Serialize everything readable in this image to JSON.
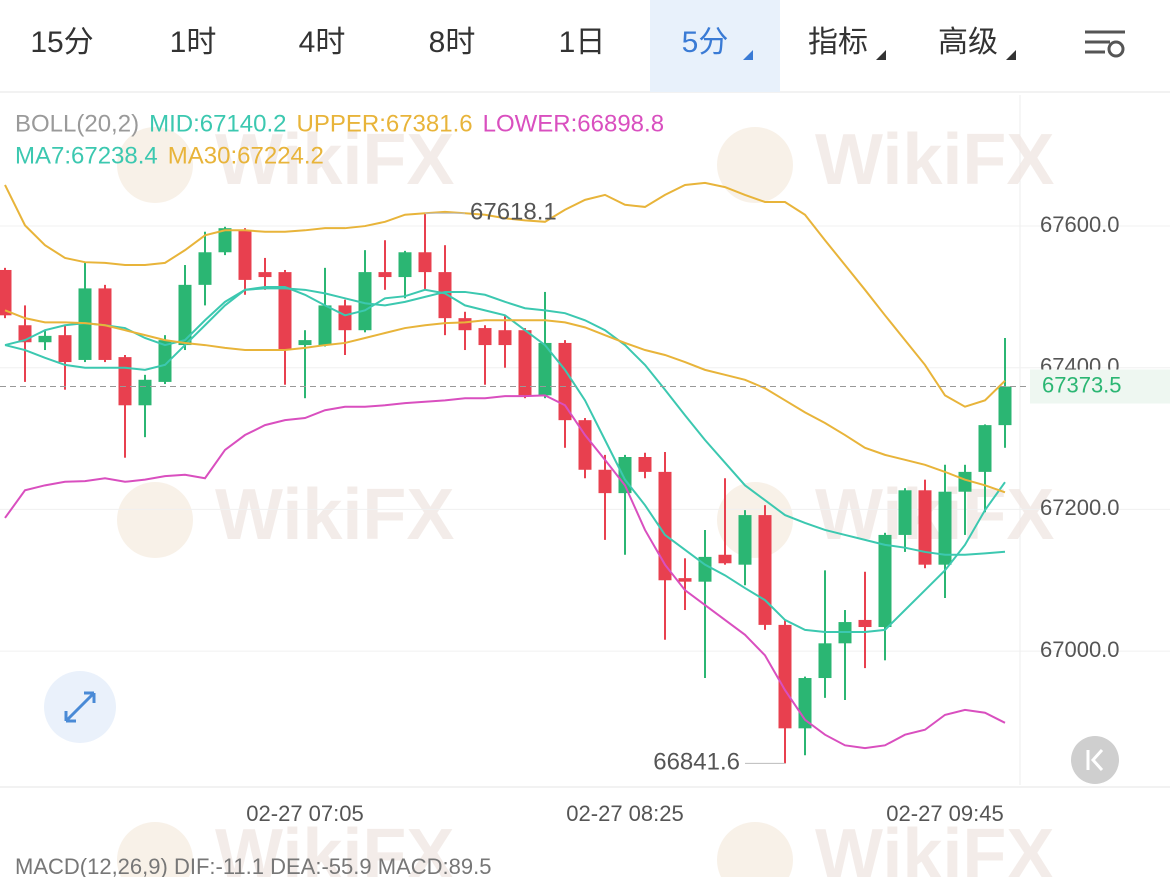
{
  "tabs": [
    "15分",
    "1时",
    "4时",
    "8时",
    "1日",
    "5分",
    "指标",
    "高级"
  ],
  "active_tab": 5,
  "watermark": "WikiFX",
  "macd_label": "MACD(12,26,9)  DIF:-11.1  DEA:-55.9  MACD:89.5",
  "chart_data": {
    "type": "candlestick",
    "legend": [
      [
        {
          "text": "BOLL(20,2)",
          "color": "#9a9a9a"
        },
        {
          "text": "MID:67140.2",
          "color": "#3cc8b0"
        },
        {
          "text": "UPPER:67381.6",
          "color": "#e8b43a"
        },
        {
          "text": "LOWER:66898.8",
          "color": "#d94fbf"
        }
      ],
      [
        {
          "text": "MA7:67238.4",
          "color": "#3cc8b0"
        },
        {
          "text": "MA30:67224.2",
          "color": "#e8b43a"
        }
      ]
    ],
    "categories": [
      null,
      null,
      null,
      null,
      null,
      null,
      null,
      null,
      null,
      null,
      null,
      null,
      null,
      null,
      null,
      "02-27 07:05",
      null,
      null,
      null,
      null,
      null,
      null,
      null,
      null,
      null,
      null,
      null,
      null,
      null,
      null,
      null,
      "02-27 08:25",
      null,
      null,
      null,
      null,
      null,
      null,
      null,
      null,
      null,
      null,
      null,
      null,
      null,
      null,
      null,
      "02-27 09:45",
      null,
      null,
      null
    ],
    "open": [
      67538,
      67460,
      67436,
      67446,
      67411,
      67512,
      67415,
      67347,
      67380,
      67432,
      67517,
      67563,
      67594,
      67535,
      67535,
      67432,
      67432,
      67488,
      67453,
      67535,
      67528,
      67563,
      67535,
      67470,
      67456,
      67453,
      67453,
      67361,
      67435,
      67326,
      67256,
      67223,
      67274,
      67253,
      67103,
      67098,
      67136,
      67122,
      67192,
      67037,
      66891,
      66962,
      67011,
      67044,
      67034,
      67164,
      67227,
      67122,
      67225,
      67253,
      67319
    ],
    "high": [
      67541,
      67488,
      67453,
      67460,
      67549,
      67517,
      67418,
      67390,
      67446,
      67545,
      67592,
      67599,
      67597,
      67555,
      67538,
      67453,
      67541,
      67496,
      67566,
      67580,
      67565,
      67618.1,
      67573,
      67479,
      67460,
      67474,
      67456,
      67507,
      67439,
      67329,
      67277,
      67277,
      67280,
      67281,
      67131,
      67171,
      67244,
      67199,
      67206,
      67044,
      66964,
      67114,
      67058,
      67112,
      67167,
      67230,
      67242,
      67263,
      67263,
      67320,
      67442
    ],
    "low": [
      67470,
      67380,
      67425,
      67369,
      67408,
      67408,
      67273,
      67302,
      67377,
      67425,
      67488,
      67559,
      67503,
      67510,
      67376,
      67357,
      67430,
      67418,
      67450,
      67510,
      67498,
      67510,
      67446,
      67425,
      67376,
      67400,
      67357,
      67357,
      67287,
      67244,
      67157,
      67136,
      67244,
      67016,
      67058,
      66962,
      67122,
      67093,
      67030,
      66841.6,
      66853,
      66934,
      66931,
      66976,
      66987,
      67140,
      67117,
      67075,
      67164,
      67196,
      67287
    ],
    "close": [
      67474,
      67436,
      67445,
      67408,
      67512,
      67411,
      67347,
      67383,
      67439,
      67517,
      67563,
      67597,
      67524,
      67528,
      67425,
      67439,
      67488,
      67453,
      67535,
      67528,
      67563,
      67535,
      67470,
      67453,
      67432,
      67432,
      67361,
      67435,
      67326,
      67256,
      67223,
      67274,
      67253,
      67100,
      67098,
      67133,
      67124,
      67192,
      67037,
      66891,
      66962,
      67011,
      67041,
      67034,
      67164,
      67227,
      67122,
      67225,
      67253,
      67319,
      67373.5
    ],
    "up_color": "#2bb673",
    "down_color": "#e8404f",
    "series": [
      {
        "color": "#e8b43a",
        "values": [
          67658,
          67601,
          67573,
          67555,
          67549,
          67548,
          67545,
          67545,
          67548,
          67566,
          67587,
          67594,
          67594,
          67592,
          67592,
          67594,
          67597,
          67597,
          67600,
          67606,
          67616,
          67618,
          67620,
          67618,
          67616,
          67611,
          67608,
          67606,
          67623,
          67637,
          67644,
          67630,
          67627,
          67644,
          67658,
          67661,
          67655,
          67644,
          67634,
          67634,
          67616,
          67580,
          67545,
          67510,
          67474,
          67439,
          67404,
          67361,
          67345,
          67354,
          67381.6
        ]
      },
      {
        "color": "#3cc8b0",
        "values": [
          67432,
          67439,
          67453,
          67460,
          67463,
          67460,
          67456,
          67442,
          67432,
          67439,
          67467,
          67493,
          67510,
          67512,
          67512,
          67510,
          67505,
          67498,
          67491,
          67488,
          67493,
          67500,
          67507,
          67507,
          67503,
          67493,
          67484,
          67481,
          67477,
          67467,
          67453,
          67432,
          67404,
          67369,
          67333,
          67298,
          67266,
          67234,
          67213,
          67192,
          67181,
          67171,
          67164,
          67157,
          67150,
          67146,
          67140,
          67136,
          67136,
          67138,
          67140.2
        ]
      },
      {
        "color": "#d94fbf",
        "values": [
          67188,
          67227,
          67234,
          67239,
          67240,
          67244,
          67239,
          67242,
          67247,
          67249,
          67244,
          67284,
          67305,
          67319,
          67326,
          67329,
          67340,
          67345,
          67345,
          67347,
          67350,
          67352,
          67354,
          67357,
          67357,
          67360,
          67360,
          67361,
          67347,
          67305,
          67270,
          67234,
          67171,
          67122,
          67086,
          67065,
          67044,
          67023,
          66994,
          66945,
          66903,
          66882,
          66867,
          66863,
          66867,
          66882,
          66889,
          66910,
          66917,
          66913,
          66898.8
        ]
      },
      {
        "color": "#3cc8b0",
        "values": [
          67432,
          67425,
          67414,
          67404,
          67400,
          67400,
          67400,
          67397,
          67404,
          67432,
          67460,
          67488,
          67510,
          67514,
          67514,
          67503,
          67488,
          67474,
          67481,
          67498,
          67501,
          67510,
          67505,
          67488,
          67481,
          67474,
          67453,
          67432,
          67397,
          67354,
          67298,
          67242,
          67206,
          67164,
          67143,
          67122,
          67107,
          67089,
          67072,
          67044,
          67030,
          67027,
          67027,
          67027,
          67030,
          67058,
          67086,
          67114,
          67150,
          67199,
          67238.4
        ]
      },
      {
        "color": "#e8b43a",
        "values": [
          67481,
          67470,
          67464,
          67464,
          67463,
          67460,
          67453,
          67446,
          67439,
          67435,
          67432,
          67428,
          67425,
          67425,
          67425,
          67428,
          67432,
          67435,
          67442,
          67449,
          67456,
          67460,
          67463,
          67464,
          67467,
          67467,
          67467,
          67467,
          67464,
          67457,
          67446,
          67435,
          67425,
          67418,
          67408,
          67397,
          67390,
          67383,
          67371,
          67354,
          67337,
          67322,
          67305,
          67287,
          67277,
          67270,
          67263,
          67253,
          67242,
          67234,
          67224.2
        ]
      }
    ],
    "ylim": [
      66811,
      67785
    ],
    "yticks": [
      {
        "value": 67000,
        "label": "67000.0"
      },
      {
        "value": 67200,
        "label": "67200.0"
      },
      {
        "value": 67400,
        "label": "67400.0"
      },
      {
        "value": 67600,
        "label": "67600.0"
      }
    ],
    "grid": true,
    "max_label": "67618.1",
    "min_label": "66841.6",
    "last_price_label": "67373.5",
    "last_price_color": "#2bb673"
  }
}
